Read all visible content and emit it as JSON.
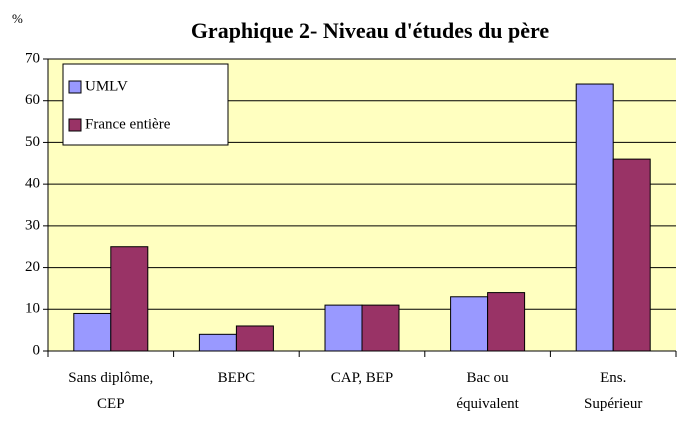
{
  "chart_data": {
    "type": "bar",
    "title": "Graphique 2- Niveau d'études du père",
    "y_label": "%",
    "categories": [
      "Sans diplôme, CEP",
      "BEPC",
      "CAP, BEP",
      "Bac ou équivalent",
      "Ens. Supérieur"
    ],
    "series": [
      {
        "name": "UMLV",
        "color": "#9999ff",
        "values": [
          9,
          4,
          11,
          13,
          64
        ]
      },
      {
        "name": "France entière",
        "color": "#993366",
        "values": [
          25,
          6,
          11,
          14,
          46
        ]
      }
    ],
    "ylim": [
      0,
      70
    ],
    "yticks": [
      0,
      10,
      20,
      30,
      40,
      50,
      60,
      70
    ],
    "grid": true,
    "legend": "top-left",
    "plot_background": "#ffffc0"
  }
}
